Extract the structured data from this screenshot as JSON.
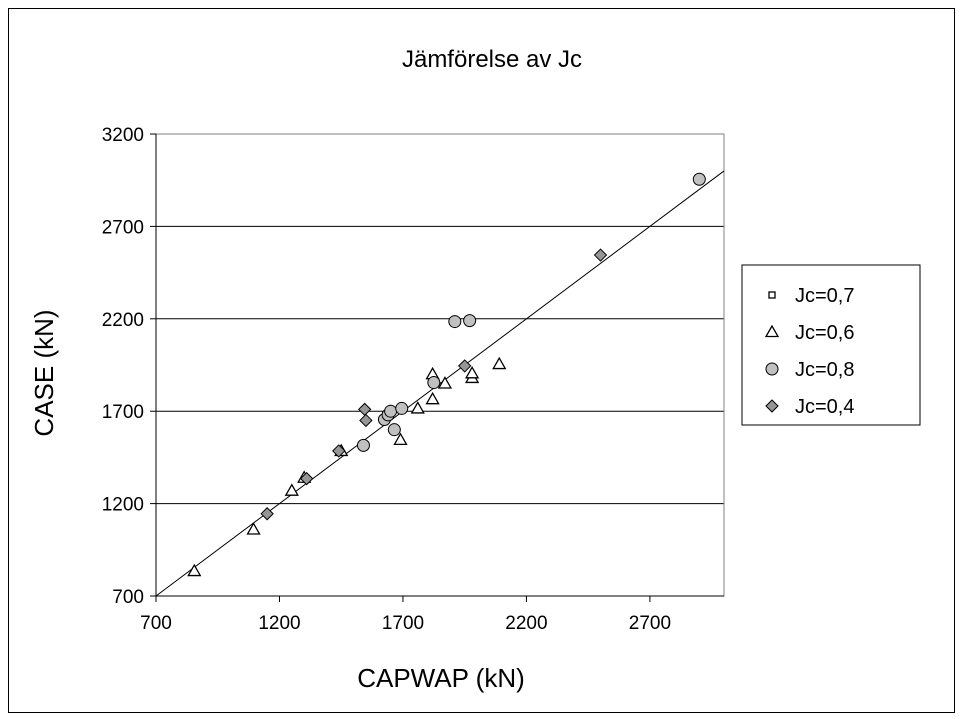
{
  "chart_data": {
    "type": "scatter",
    "title": "Jämförelse av Jc",
    "xlabel": "CAPWAP (kN)",
    "ylabel": "CASE (kN)",
    "xlim": [
      700,
      3000
    ],
    "ylim": [
      700,
      3200
    ],
    "xticks": [
      "700",
      "1200",
      "1700",
      "2200",
      "2700"
    ],
    "yticks": [
      "700",
      "1200",
      "1700",
      "2200",
      "2700",
      "3200"
    ],
    "grid": "horizontal",
    "legend_position": "right",
    "trendline": {
      "x": [
        700,
        3000
      ],
      "y": [
        700,
        3000
      ]
    },
    "series": [
      {
        "name": "Jc=0,7",
        "marker": "square",
        "color": "#ffffff",
        "x": [],
        "y": []
      },
      {
        "name": "Jc=0,6",
        "marker": "triangle",
        "color": "#ffffff",
        "x": [
          855,
          1095,
          1250,
          1300,
          1450,
          1690,
          1760,
          1820,
          1820,
          1870,
          1980,
          1980,
          2090
        ],
        "y": [
          835,
          1060,
          1270,
          1340,
          1485,
          1545,
          1715,
          1765,
          1900,
          1850,
          1880,
          1905,
          1955
        ]
      },
      {
        "name": "Jc=0,8",
        "marker": "circle",
        "color": "#c0c0c0",
        "x": [
          1540,
          1625,
          1640,
          1650,
          1665,
          1695,
          1825,
          1910,
          1970,
          2900
        ],
        "y": [
          1515,
          1655,
          1680,
          1700,
          1600,
          1715,
          1855,
          2185,
          2190,
          2955
        ]
      },
      {
        "name": "Jc=0,4",
        "marker": "diamond",
        "color": "#969696",
        "x": [
          1150,
          1310,
          1440,
          1545,
          1550,
          1950,
          2500
        ],
        "y": [
          1145,
          1335,
          1485,
          1710,
          1650,
          1945,
          2545
        ]
      }
    ]
  }
}
